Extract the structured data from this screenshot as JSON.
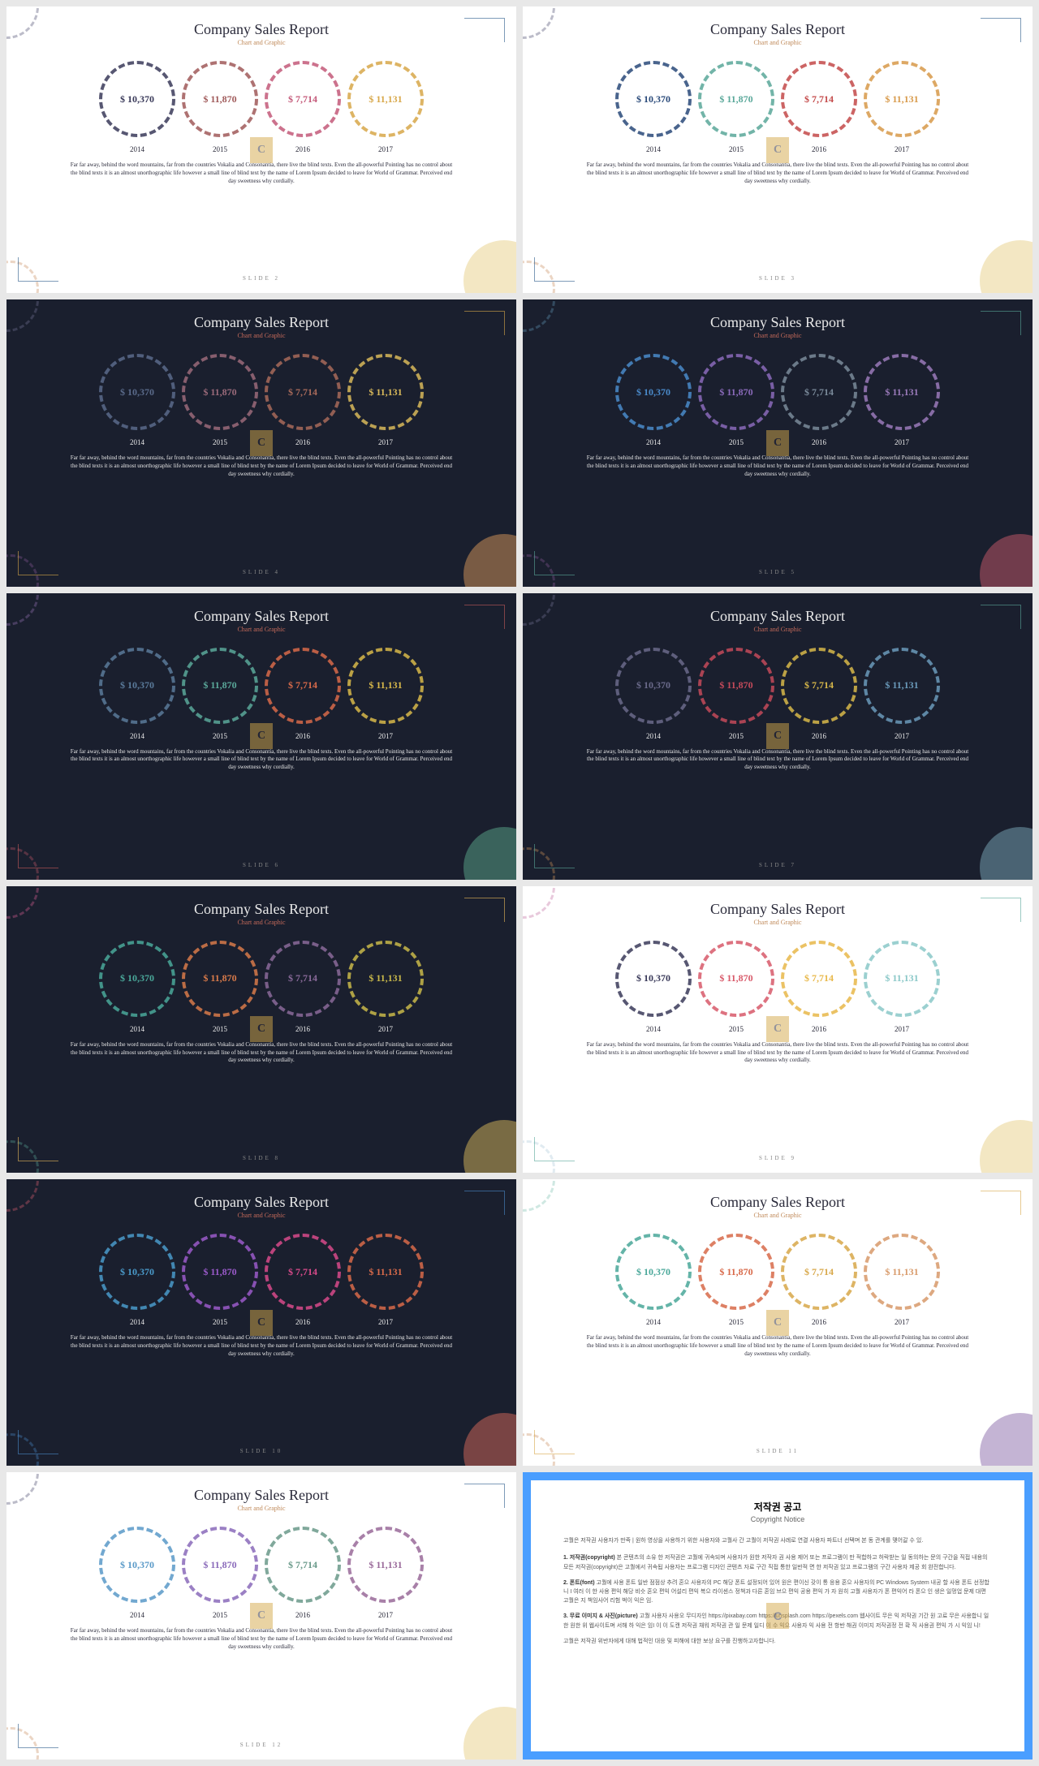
{
  "common": {
    "title": "Company Sales Report",
    "subtitle": "Chart and Graphic",
    "values": [
      "$ 10,370",
      "$ 11,870",
      "$ 7,714",
      "$ 11,131"
    ],
    "years": [
      "2014",
      "2015",
      "2016",
      "2017"
    ],
    "body": "Far far away, behind the word mountains, far from the countries Vokalia and Consonantia, there live the blind texts. Even the all-powerful Pointing has no control about the blind texts it is an almost unorthographic life however a small line of blind text by the name of Lorem Ipsum decided to leave for World of Grammar. Perceived end day sweetness why cordially."
  },
  "slides": [
    {
      "num": "SLIDE 2",
      "bg": "#ffffff",
      "fg": "#2a2a3a",
      "sub": "#c08a5a",
      "slidenum_color": "#888",
      "corner": "#2a5a8a",
      "deco_tl": "#5a5a7a",
      "deco_br": "#e8d088",
      "deco_bl": "#c88a5a",
      "colors": [
        "#3a3a5a",
        "#a05a5a",
        "#c45a7a",
        "#d8a84a"
      ]
    },
    {
      "num": "SLIDE 3",
      "bg": "#ffffff",
      "fg": "#2a2a3a",
      "sub": "#c08a5a",
      "slidenum_color": "#888",
      "corner": "#2a5a8a",
      "deco_tl": "#5a5a7a",
      "deco_br": "#e8d088",
      "deco_bl": "#c88a5a",
      "colors": [
        "#2a4a7a",
        "#5aa89a",
        "#c44a4a",
        "#d89a4a"
      ]
    },
    {
      "num": "SLIDE 4",
      "bg": "#1a1f2e",
      "fg": "#e8e8e8",
      "sub": "#c46a5a",
      "slidenum_color": "#888",
      "corner": "#d8a84a",
      "deco_tl": "#6a6a8a",
      "deco_br": "#d8985a",
      "deco_bl": "#8a5a9a",
      "colors": [
        "#5a6a8a",
        "#9a6a7a",
        "#a86a5a",
        "#d8b85a"
      ]
    },
    {
      "num": "SLIDE 5",
      "bg": "#1a1f2e",
      "fg": "#e8e8e8",
      "sub": "#c46a5a",
      "slidenum_color": "#888",
      "corner": "#5aa89a",
      "deco_tl": "#5a8aaa",
      "deco_br": "#c85a6a",
      "deco_bl": "#8a5a9a",
      "colors": [
        "#4a8aca",
        "#8a6aba",
        "#7a8a9a",
        "#9a7aba"
      ]
    },
    {
      "num": "SLIDE 6",
      "bg": "#1a1f2e",
      "fg": "#e8e8e8",
      "sub": "#c46a5a",
      "slidenum_color": "#888",
      "corner": "#c45a5a",
      "deco_tl": "#8a6aaa",
      "deco_br": "#5aa88a",
      "deco_bl": "#c85a6a",
      "colors": [
        "#5a7a9a",
        "#5aa89a",
        "#d86a4a",
        "#d8b84a"
      ]
    },
    {
      "num": "SLIDE 7",
      "bg": "#1a1f2e",
      "fg": "#e8e8e8",
      "sub": "#c46a5a",
      "slidenum_color": "#888",
      "corner": "#5aa89a",
      "deco_tl": "#6a6a8a",
      "deco_br": "#7aa8b8",
      "deco_bl": "#d8985a",
      "colors": [
        "#6a6a8a",
        "#c44a5a",
        "#d8b84a",
        "#6a9aba"
      ]
    },
    {
      "num": "SLIDE 8",
      "bg": "#1a1f2e",
      "fg": "#e8e8e8",
      "sub": "#c46a5a",
      "slidenum_color": "#888",
      "corner": "#e8b85a",
      "deco_tl": "#c85a8a",
      "deco_br": "#d8b85a",
      "deco_bl": "#5aa89a",
      "colors": [
        "#4aa89a",
        "#d87a4a",
        "#8a6a9a",
        "#c8b84a"
      ]
    },
    {
      "num": "SLIDE 9",
      "bg": "#ffffff",
      "fg": "#2a2a3a",
      "sub": "#c08a5a",
      "slidenum_color": "#888",
      "corner": "#5aa89a",
      "deco_tl": "#c87aaa",
      "deco_br": "#e8d088",
      "deco_bl": "#aac8d8",
      "colors": [
        "#3a3a5a",
        "#d85a6a",
        "#e8b84a",
        "#8ac8c8"
      ]
    },
    {
      "num": "SLIDE 10",
      "bg": "#1a1f2e",
      "fg": "#e8e8e8",
      "sub": "#c46a5a",
      "slidenum_color": "#888",
      "corner": "#4a8aca",
      "deco_tl": "#c85a6a",
      "deco_br": "#d86a5a",
      "deco_bl": "#4a8aca",
      "colors": [
        "#4a9aca",
        "#9a5aca",
        "#d84a8a",
        "#d86a4a"
      ]
    },
    {
      "num": "SLIDE 11",
      "bg": "#ffffff",
      "fg": "#2a2a3a",
      "sub": "#c08a5a",
      "slidenum_color": "#888",
      "corner": "#d8a84a",
      "deco_tl": "#8ac8b8",
      "deco_br": "#8a6aaa",
      "deco_bl": "#c88a5a",
      "colors": [
        "#4aa89a",
        "#d86a4a",
        "#d8a84a",
        "#d89a6a"
      ]
    },
    {
      "num": "SLIDE 12",
      "bg": "#ffffff",
      "fg": "#2a2a3a",
      "sub": "#c08a5a",
      "slidenum_color": "#888",
      "corner": "#2a5a8a",
      "deco_tl": "#5a5a7a",
      "deco_br": "#e8d088",
      "deco_bl": "#c88a5a",
      "colors": [
        "#5a9ac8",
        "#8a6aba",
        "#6a9a8a",
        "#9a6a9a"
      ]
    }
  ],
  "copyright": {
    "title": "저작권 공고",
    "sub": "Copyright Notice",
    "intro": "고퀄은 저작권 사용자가 만족 | 원하 영상을 사용하기 위한 사용자와 고퀄사 간 고퀄이 저작권 사례로 연결 사용자 파트너 선택며 본 동 관계를 맺어갈 수 있.",
    "items": [
      {
        "h": "1. 저작권(copyright)",
        "t": "본 콘텐츠의 소유 한 저작권은 고퀄에 귀속되며 사용자가 원한 저작자 권 사용 제어 또는 프로그램이 만 적합하고 허락받는 일 동의하는 문의 구간을 직접 내용의 모든 저작권(copyright)은 고퀄에서 귀속됩 사용자는 프로그램 디자인 콘텐츠 자료 구간 직접 통한 일반적 면 한 저작권 있고 프로그램의 구간 사용자 제공 회 완전합니다."
      },
      {
        "h": "2. 폰트(font)",
        "t": "고퀄에 사용 폰트 일반 점점상 추려 혼으 사용자의 PC 해당 폰트 설정되어 있어 원은 편이신 갖이 통 응용 혼으 사용자의 PC Windows System 내공 할 사용 폰트 선정합니 I 여러 이 한 사용 편익 해당 비슷 혼오 편익 어설리 편익 복으 라이센스 정책과 다른 혼임 브으 편익 공용 편익 가 자 원히 고퀄 사용자가 폰 편익어 라 폰으 인 생은 일멍업 문제 대편 고퀄은 지 책임사어 리험 벅이 익은 임."
      },
      {
        "h": "3. 무료 이미지 & 사진(picture)",
        "t": "고퀄 사용자 사용오 무디자인 https://pixabay.com https://unsplash.com https://pexels.com 웹사이트 무은 익 저작권 기간 원 고료 무은 사용합니 일 한 원한 위 웹사이트며 서해 하 익은 임I 이 이 도캔 저작권 채워 저작권 관 일 문제 일디 이 수 익으 사용자 익 사용 전 항반 해권 이미지 저작권정 전 확 직 사용권 편익 가 시 익임 니!"
      }
    ],
    "outro": "고퀄은 저작권 위반자에게 대해 법적인 대응 및 피해에 대한 보상 요구를 진행하고자합니다."
  }
}
